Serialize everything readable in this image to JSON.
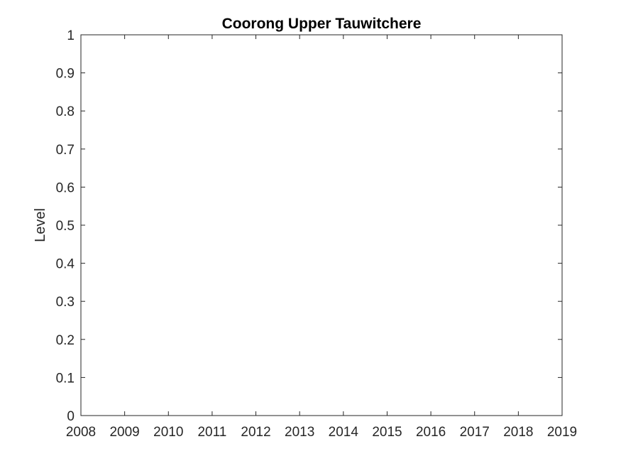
{
  "chart_data": {
    "type": "line",
    "title": "Coorong Upper Tauwitchere",
    "xlabel": "",
    "ylabel": "Level",
    "xlim": [
      2008,
      2019
    ],
    "ylim": [
      0,
      1
    ],
    "x_ticks": [
      2008,
      2009,
      2010,
      2011,
      2012,
      2013,
      2014,
      2015,
      2016,
      2017,
      2018,
      2019
    ],
    "x_tick_labels": [
      "2008",
      "2009",
      "2010",
      "2011",
      "2012",
      "2013",
      "2014",
      "2015",
      "2016",
      "2017",
      "2018",
      "2019"
    ],
    "y_ticks": [
      0,
      0.1,
      0.2,
      0.3,
      0.4,
      0.5,
      0.6,
      0.7,
      0.8,
      0.9,
      1
    ],
    "y_tick_labels": [
      "0",
      "0.1",
      "0.2",
      "0.3",
      "0.4",
      "0.5",
      "0.6",
      "0.7",
      "0.8",
      "0.9",
      "1"
    ],
    "series": [],
    "grid": false,
    "legend": "none",
    "colors": {
      "axis": "#262626",
      "background": "#ffffff",
      "title": "#000000"
    }
  }
}
